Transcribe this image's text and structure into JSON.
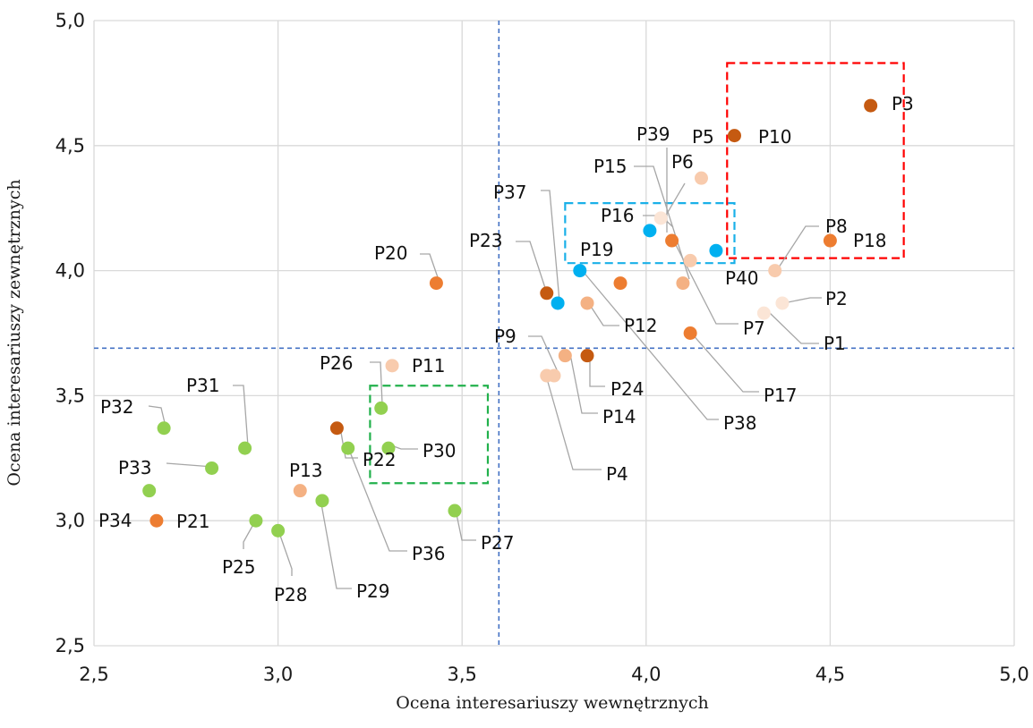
{
  "chart_data": {
    "type": "scatter",
    "xlabel": "Ocena interesariuszy wewnętrznych",
    "ylabel": "Ocena interesariuszy zewnętrznych",
    "xlim": [
      2.5,
      5.0
    ],
    "ylim": [
      2.5,
      5.0
    ],
    "xticks": [
      "2,5",
      "3,0",
      "3,5",
      "4,0",
      "4,5",
      "5,0"
    ],
    "yticks": [
      "2,5",
      "3,0",
      "3,5",
      "4,0",
      "4,5",
      "5,0"
    ],
    "grid": true,
    "reference_lines": {
      "x": 3.6,
      "y": 3.69,
      "color": "#4472c4"
    },
    "boxes": [
      {
        "x": [
          4.22,
          4.7
        ],
        "y": [
          4.05,
          4.83
        ],
        "color": "#ff0000"
      },
      {
        "x": [
          3.78,
          4.24
        ],
        "y": [
          4.03,
          4.27
        ],
        "color": "#1ab0e8"
      },
      {
        "x": [
          3.25,
          3.57
        ],
        "y": [
          3.15,
          3.54
        ],
        "color": "#22b14c"
      }
    ],
    "colors": {
      "dark_orange": "#c55a11",
      "orange": "#ed7d31",
      "salmon": "#f4b183",
      "light_peach": "#f8cbad",
      "very_light_peach": "#fbe5d6",
      "blue": "#00b0f0",
      "green": "#92d050",
      "leader": "#a6a6a6"
    },
    "points": [
      {
        "label": "P1",
        "x": 4.32,
        "y": 3.83,
        "color": "#fbe5d6"
      },
      {
        "label": "P2",
        "x": 4.37,
        "y": 3.87,
        "color": "#fbe5d6"
      },
      {
        "label": "P3",
        "x": 4.61,
        "y": 4.66,
        "color": "#c55a11"
      },
      {
        "label": "P4",
        "x": 3.73,
        "y": 3.58,
        "color": "#f8cbad"
      },
      {
        "label": "P5",
        "x": 4.15,
        "y": 4.37,
        "color": "#f8cbad"
      },
      {
        "label": "P6",
        "x": 4.04,
        "y": 4.21,
        "color": "#fbe5d6"
      },
      {
        "label": "P7",
        "x": 4.12,
        "y": 4.04,
        "color": "#f8cbad"
      },
      {
        "label": "P8",
        "x": 4.35,
        "y": 4.0,
        "color": "#f8cbad"
      },
      {
        "label": "P9",
        "x": 3.75,
        "y": 3.58,
        "color": "#f8cbad"
      },
      {
        "label": "P10",
        "x": 4.24,
        "y": 4.54,
        "color": "#c55a11"
      },
      {
        "label": "P11",
        "x": 3.31,
        "y": 3.62,
        "color": "#f8cbad"
      },
      {
        "label": "P12",
        "x": 3.84,
        "y": 3.87,
        "color": "#f4b183"
      },
      {
        "label": "P13",
        "x": 3.06,
        "y": 3.12,
        "color": "#f4b183"
      },
      {
        "label": "P14",
        "x": 3.78,
        "y": 3.66,
        "color": "#f4b183"
      },
      {
        "label": "P15",
        "x": 4.1,
        "y": 3.95,
        "color": "#f4b183"
      },
      {
        "label": "P16",
        "x": 4.01,
        "y": 4.16,
        "color": "#00b0f0"
      },
      {
        "label": "P17",
        "x": 4.12,
        "y": 3.75,
        "color": "#ed7d31"
      },
      {
        "label": "P18",
        "x": 4.5,
        "y": 4.12,
        "color": "#ed7d31"
      },
      {
        "label": "P19",
        "x": 3.82,
        "y": 4.0,
        "color": "#00b0f0"
      },
      {
        "label": "P20",
        "x": 3.43,
        "y": 3.95,
        "color": "#ed7d31"
      },
      {
        "label": "P21",
        "x": 2.67,
        "y": 3.0,
        "color": "#ed7d31"
      },
      {
        "label": "P22",
        "x": 3.16,
        "y": 3.37,
        "color": "#c55a11"
      },
      {
        "label": "P23",
        "x": 3.73,
        "y": 3.91,
        "color": "#c55a11"
      },
      {
        "label": "P24",
        "x": 3.84,
        "y": 3.66,
        "color": "#c55a11"
      },
      {
        "label": "P25",
        "x": 2.94,
        "y": 3.0,
        "color": "#92d050"
      },
      {
        "label": "P26",
        "x": 3.28,
        "y": 3.45,
        "color": "#92d050"
      },
      {
        "label": "P27",
        "x": 3.48,
        "y": 3.04,
        "color": "#92d050"
      },
      {
        "label": "P28",
        "x": 3.0,
        "y": 2.96,
        "color": "#92d050"
      },
      {
        "label": "P29",
        "x": 3.12,
        "y": 3.08,
        "color": "#92d050"
      },
      {
        "label": "P30",
        "x": 3.3,
        "y": 3.29,
        "color": "#92d050"
      },
      {
        "label": "P31",
        "x": 2.91,
        "y": 3.29,
        "color": "#92d050"
      },
      {
        "label": "P32",
        "x": 2.69,
        "y": 3.37,
        "color": "#92d050"
      },
      {
        "label": "P33",
        "x": 2.82,
        "y": 3.21,
        "color": "#92d050"
      },
      {
        "label": "P34",
        "x": 2.65,
        "y": 3.12,
        "color": "#92d050"
      },
      {
        "label": "P36",
        "x": 3.19,
        "y": 3.29,
        "color": "#92d050"
      },
      {
        "label": "P37",
        "x": 3.76,
        "y": 3.87,
        "color": "#00b0f0"
      },
      {
        "label": "P38",
        "x": 3.93,
        "y": 3.95,
        "color": "#ed7d31"
      },
      {
        "label": "P39",
        "x": 4.07,
        "y": 4.12,
        "color": "#ed7d31"
      },
      {
        "label": "P40",
        "x": 4.19,
        "y": 4.08,
        "color": "#00b0f0"
      }
    ]
  }
}
